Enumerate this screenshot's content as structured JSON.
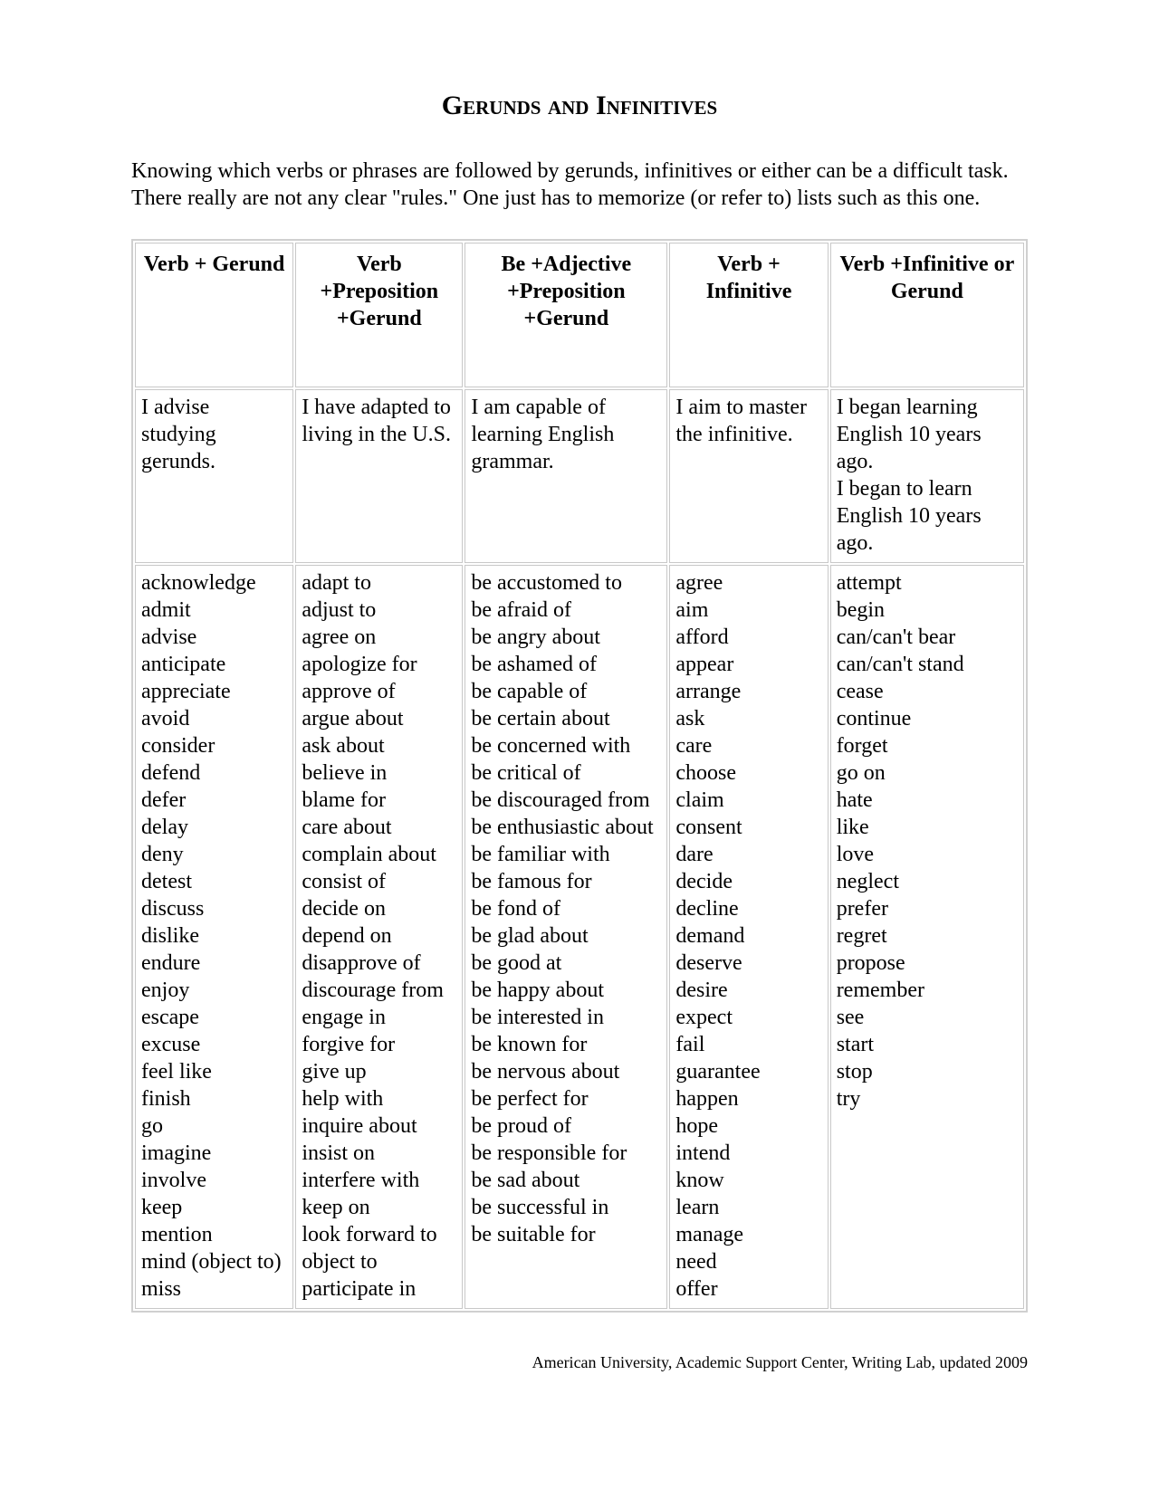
{
  "title": "Gerunds and Infinitives",
  "intro": "Knowing which verbs or phrases are followed by gerunds, infinitives or either can be a difficult task. There really are not any clear \"rules.\" One just has to memorize (or refer to) lists such as this one.",
  "table": {
    "headers": [
      "Verb + Gerund",
      "Verb +Preposition +Gerund",
      "Be +Adjective +Preposition +Gerund",
      "Verb + Infinitive",
      "Verb +Infinitive or Gerund"
    ],
    "examples": [
      "I advise studying gerunds.",
      "I have adapted to living in the U.S.",
      "I am capable of learning English grammar.",
      "I aim to master the infinitive.",
      "I began learning English 10 years ago.\nI began to learn English 10 years ago."
    ],
    "lists": [
      "acknowledge\nadmit\nadvise\nanticipate\nappreciate\navoid\nconsider\ndefend\ndefer\ndelay\ndeny\ndetest\ndiscuss\ndislike\nendure\nenjoy\nescape\nexcuse\nfeel like\nfinish\ngo\nimagine\ninvolve\nkeep\nmention\nmind (object to)\nmiss",
      "adapt to\nadjust to\nagree on\napologize for\napprove of\nargue about\nask about\nbelieve in\nblame for\ncare about\ncomplain about\nconsist of\ndecide on\ndepend on\ndisapprove of\ndiscourage from\nengage in\nforgive for\ngive up\nhelp with\ninquire about\ninsist on\ninterfere with\nkeep on\nlook forward to\nobject to\nparticipate in",
      "be accustomed to\nbe afraid of\nbe angry about\nbe ashamed of\nbe capable of\nbe certain about\nbe concerned with\nbe critical of\nbe discouraged from\nbe enthusiastic about\nbe familiar with\nbe famous for\nbe fond of\nbe glad about\nbe good at\nbe happy about\nbe interested in\nbe known for\nbe nervous about\nbe perfect for\nbe proud of\nbe responsible for\nbe sad about\nbe successful in\nbe suitable for",
      "agree\naim\nafford\nappear\narrange\nask\ncare\nchoose\nclaim\nconsent\ndare\ndecide\ndecline\ndemand\ndeserve\ndesire\nexpect\nfail\nguarantee\nhappen\nhope\nintend\nknow\nlearn\nmanage\nneed\noffer",
      "attempt\nbegin\ncan/can't bear\ncan/can't stand\ncease\ncontinue\nforget\ngo on\nhate\nlike\nlove\nneglect\nprefer\nregret\npropose\nremember\nsee\nstart\nstop\ntry"
    ]
  },
  "footer": "American University, Academic Support Center, Writing Lab, updated 2009"
}
